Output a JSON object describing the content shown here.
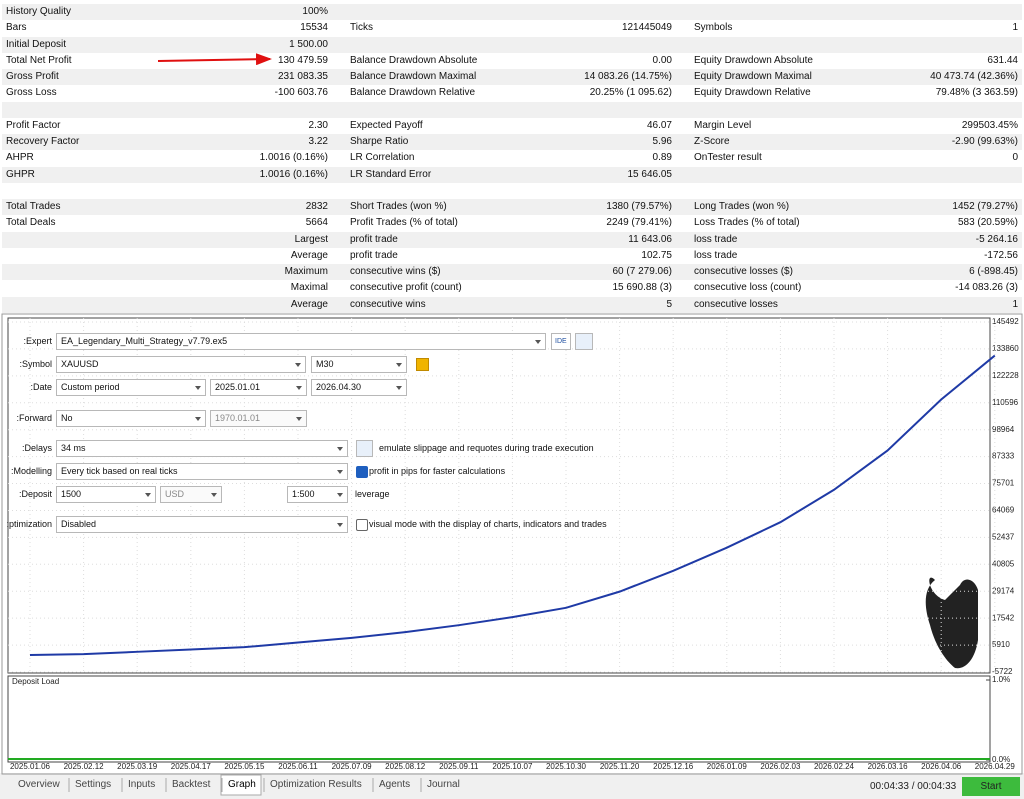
{
  "report": {
    "rows": [
      [
        [
          "History Quality",
          "100%"
        ]
      ],
      [
        [
          "Bars",
          "15534"
        ],
        [
          "Ticks",
          "121445049"
        ],
        [
          "Symbols",
          "1"
        ]
      ],
      [
        [
          "Initial Deposit",
          "1 500.00"
        ]
      ],
      [
        [
          "Total Net Profit",
          "130 479.59"
        ],
        [
          "Balance Drawdown Absolute",
          "0.00"
        ],
        [
          "Equity Drawdown Absolute",
          "631.44"
        ]
      ],
      [
        [
          "Gross Profit",
          "231 083.35"
        ],
        [
          "Balance Drawdown Maximal",
          "14 083.26 (14.75%)"
        ],
        [
          "Equity Drawdown Maximal",
          "40 473.74 (42.36%)"
        ]
      ],
      [
        [
          "Gross Loss",
          "-100 603.76"
        ],
        [
          "Balance Drawdown Relative",
          "20.25% (1 095.62)"
        ],
        [
          "Equity Drawdown Relative",
          "79.48% (3 363.59)"
        ]
      ],
      [],
      [
        [
          "Profit Factor",
          "2.30"
        ],
        [
          "Expected Payoff",
          "46.07"
        ],
        [
          "Margin Level",
          "299503.45%"
        ]
      ],
      [
        [
          "Recovery Factor",
          "3.22"
        ],
        [
          "Sharpe Ratio",
          "5.96"
        ],
        [
          "Z-Score",
          "-2.90 (99.63%)"
        ]
      ],
      [
        [
          "AHPR",
          "1.0016 (0.16%)"
        ],
        [
          "LR Correlation",
          "0.89"
        ],
        [
          "OnTester result",
          "0"
        ]
      ],
      [
        [
          "GHPR",
          "1.0016 (0.16%)"
        ],
        [
          "LR Standard Error",
          "15 646.05"
        ]
      ],
      [],
      [
        [
          "Total Trades",
          "2832"
        ],
        [
          "Short Trades (won %)",
          "1380 (79.57%)"
        ],
        [
          "Long Trades (won %)",
          "1452 (79.27%)"
        ]
      ],
      [
        [
          "Total Deals",
          "5664"
        ],
        [
          "Profit Trades (% of total)",
          "2249 (79.41%)"
        ],
        [
          "Loss Trades (% of total)",
          "583 (20.59%)"
        ]
      ],
      [
        [
          null,
          "Largest"
        ],
        [
          "profit trade",
          "11 643.06"
        ],
        [
          "loss trade",
          "-5 264.16"
        ]
      ],
      [
        [
          null,
          "Average"
        ],
        [
          "profit trade",
          "102.75"
        ],
        [
          "loss trade",
          "-172.56"
        ]
      ],
      [
        [
          null,
          "Maximum"
        ],
        [
          "consecutive wins ($)",
          "60 (7 279.06)"
        ],
        [
          "consecutive losses ($)",
          "6 (-898.45)"
        ]
      ],
      [
        [
          null,
          "Maximal"
        ],
        [
          "consecutive profit (count)",
          "15 690.88 (3)"
        ],
        [
          "consecutive loss (count)",
          "-14 083.26 (3)"
        ]
      ],
      [
        [
          null,
          "Average"
        ],
        [
          "consecutive wins",
          "5"
        ],
        [
          "consecutive losses",
          "1"
        ]
      ]
    ]
  },
  "settings": {
    "expert": {
      "label": "Expert:",
      "value": "EA_Legendary_Multi_Strategy_v7.79.ex5",
      "button": "IDE"
    },
    "symbol": {
      "label": "Symbol:",
      "value": "XAUUSD",
      "period": "M30"
    },
    "date": {
      "label": "Date:",
      "value": "Custom period",
      "from": "2025.01.01",
      "to": "2026.04.30"
    },
    "forward": {
      "label": "Forward:",
      "value": "No",
      "date": "1970.01.01"
    },
    "delays": {
      "label": "Delays:",
      "value": "34 ms",
      "note": "emulate slippage and requotes during trade execution"
    },
    "modelling": {
      "label": "Modelling:",
      "value": "Every tick based on real ticks",
      "note": "profit in pips for faster calculations",
      "checked": true
    },
    "deposit": {
      "label": "Deposit:",
      "value": "1500",
      "currency": "USD",
      "leverage": "1:500",
      "note": "leverage"
    },
    "optimization": {
      "label": "ptimization:",
      "value": "Disabled",
      "note": "visual mode with the display of charts, indicators and trades",
      "checked": false
    }
  },
  "graph": {
    "ylim": [
      -5722,
      145492
    ],
    "yticks": [
      145492,
      133860,
      122228,
      110596,
      98964,
      87333,
      75701,
      64069,
      52437,
      40805,
      29174,
      17542,
      5910,
      -5722
    ],
    "dates": [
      "2025.01.06",
      "2025.02.12",
      "2025.03.19",
      "2025.04.17",
      "2025.05.15",
      "2025.06.11",
      "2025.07.09",
      "2025.08.12",
      "2025.09.11",
      "2025.10.07",
      "2025.10.30",
      "2025.11.20",
      "2025.12.16",
      "2026.01.09",
      "2026.02.03",
      "2026.02.24",
      "2026.03.16",
      "2026.04.06",
      "2026.04.29"
    ],
    "balance": [
      1600,
      2000,
      3000,
      4000,
      5000,
      7000,
      9000,
      11500,
      14500,
      18000,
      22000,
      29000,
      38000,
      48000,
      59000,
      73000,
      90000,
      112000,
      131000
    ],
    "color": "#1f3aa6",
    "deposit_load": {
      "title": "Deposit Load",
      "ylim": [
        0,
        1
      ],
      "yticks": [
        {
          "value": 1,
          "label": "1.0%"
        },
        {
          "value": 0,
          "label": "0.0%"
        }
      ],
      "color": "#22aa22"
    }
  },
  "tabs": [
    "Overview",
    "Settings",
    "Inputs",
    "Backtest",
    "Graph",
    "Optimization Results",
    "Agents",
    "Journal"
  ],
  "active_tab": 4,
  "timer": "00:04:33 / 00:04:33",
  "start": "Start"
}
